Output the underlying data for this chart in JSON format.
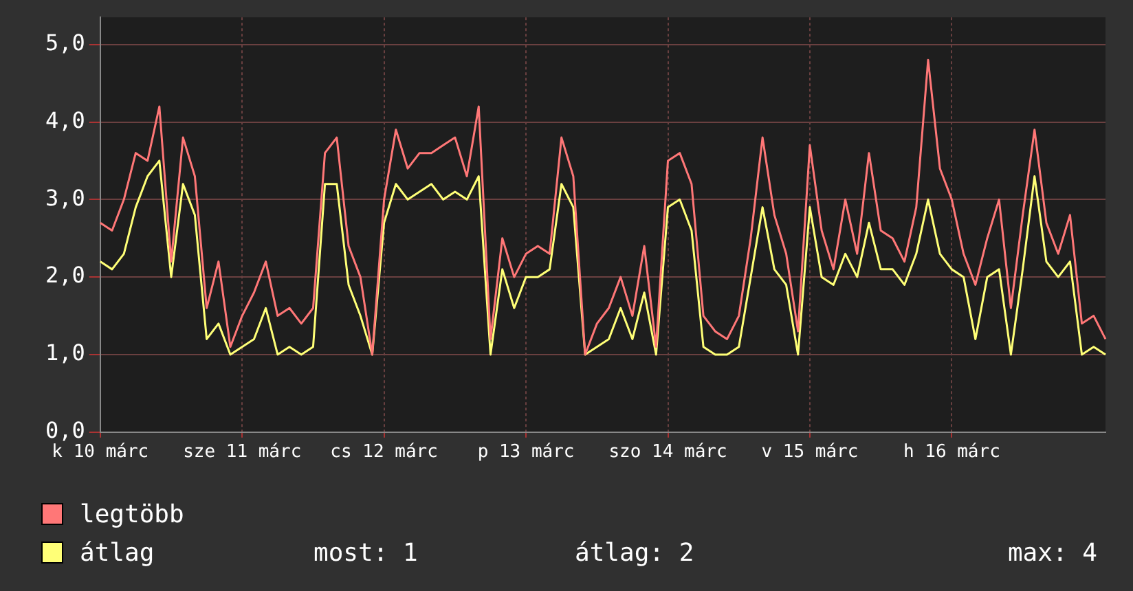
{
  "chart_data": {
    "type": "line",
    "categories": [
      "k 10 márc",
      null,
      null,
      null,
      null,
      null,
      null,
      null,
      null,
      null,
      null,
      null,
      "sze 11 márc",
      null,
      null,
      null,
      null,
      null,
      null,
      null,
      null,
      null,
      null,
      null,
      "cs 12 márc",
      null,
      null,
      null,
      null,
      null,
      null,
      null,
      null,
      null,
      null,
      null,
      "p 13 márc",
      null,
      null,
      null,
      null,
      null,
      null,
      null,
      null,
      null,
      null,
      null,
      "szo 14 márc",
      null,
      null,
      null,
      null,
      null,
      null,
      null,
      null,
      null,
      null,
      null,
      "v 15 márc",
      null,
      null,
      null,
      null,
      null,
      null,
      null,
      null,
      null,
      null,
      null,
      "h 16 márc",
      null,
      null,
      null,
      null,
      null,
      null,
      null,
      null,
      null,
      null,
      null,
      null,
      null
    ],
    "series": [
      {
        "name": "legtöbb",
        "color": "#ff7777",
        "values": [
          2.7,
          2.6,
          3.0,
          3.6,
          3.5,
          4.2,
          2.2,
          3.8,
          3.3,
          1.6,
          2.2,
          1.1,
          1.5,
          1.8,
          2.2,
          1.5,
          1.6,
          1.4,
          1.6,
          3.6,
          3.8,
          2.4,
          2.0,
          1.0,
          3.0,
          3.9,
          3.4,
          3.6,
          3.6,
          3.7,
          3.8,
          3.3,
          4.2,
          1.2,
          2.5,
          2.0,
          2.3,
          2.4,
          2.3,
          3.8,
          3.3,
          1.0,
          1.4,
          1.6,
          2.0,
          1.5,
          2.4,
          1.1,
          3.5,
          3.6,
          3.2,
          1.5,
          1.3,
          1.2,
          1.5,
          2.5,
          3.8,
          2.8,
          2.3,
          1.3,
          3.7,
          2.6,
          2.1,
          3.0,
          2.3,
          3.6,
          2.6,
          2.5,
          2.2,
          2.9,
          4.8,
          3.4,
          3.0,
          2.3,
          1.9,
          2.5,
          3.0,
          1.6,
          2.8,
          3.9,
          2.7,
          2.3,
          2.8,
          1.4,
          1.5,
          1.2
        ]
      },
      {
        "name": "átlag",
        "color": "#ffff77",
        "values": [
          2.2,
          2.1,
          2.3,
          2.9,
          3.3,
          3.5,
          2.0,
          3.2,
          2.8,
          1.2,
          1.4,
          1.0,
          1.1,
          1.2,
          1.6,
          1.0,
          1.1,
          1.0,
          1.1,
          3.2,
          3.2,
          1.9,
          1.5,
          1.0,
          2.7,
          3.2,
          3.0,
          3.1,
          3.2,
          3.0,
          3.1,
          3.0,
          3.3,
          1.0,
          2.1,
          1.6,
          2.0,
          2.0,
          2.1,
          3.2,
          2.9,
          1.0,
          1.1,
          1.2,
          1.6,
          1.2,
          1.8,
          1.0,
          2.9,
          3.0,
          2.6,
          1.1,
          1.0,
          1.0,
          1.1,
          2.0,
          2.9,
          2.1,
          1.9,
          1.0,
          2.9,
          2.0,
          1.9,
          2.3,
          2.0,
          2.7,
          2.1,
          2.1,
          1.9,
          2.3,
          3.0,
          2.3,
          2.1,
          2.0,
          1.2,
          2.0,
          2.1,
          1.0,
          2.1,
          3.3,
          2.2,
          2.0,
          2.2,
          1.0,
          1.1,
          1.0
        ]
      }
    ],
    "ylim": [
      0,
      5.35
    ],
    "yticks": [
      {
        "value": 0,
        "label": "0,0"
      },
      {
        "value": 1,
        "label": "1,0"
      },
      {
        "value": 2,
        "label": "2,0"
      },
      {
        "value": 3,
        "label": "3,0"
      },
      {
        "value": 4,
        "label": "4,0"
      },
      {
        "value": 5,
        "label": "5,0"
      }
    ],
    "grid": true,
    "legend": "bottom left",
    "annotations": [
      "most: 1",
      "átlag: 2",
      "max: 4"
    ]
  }
}
